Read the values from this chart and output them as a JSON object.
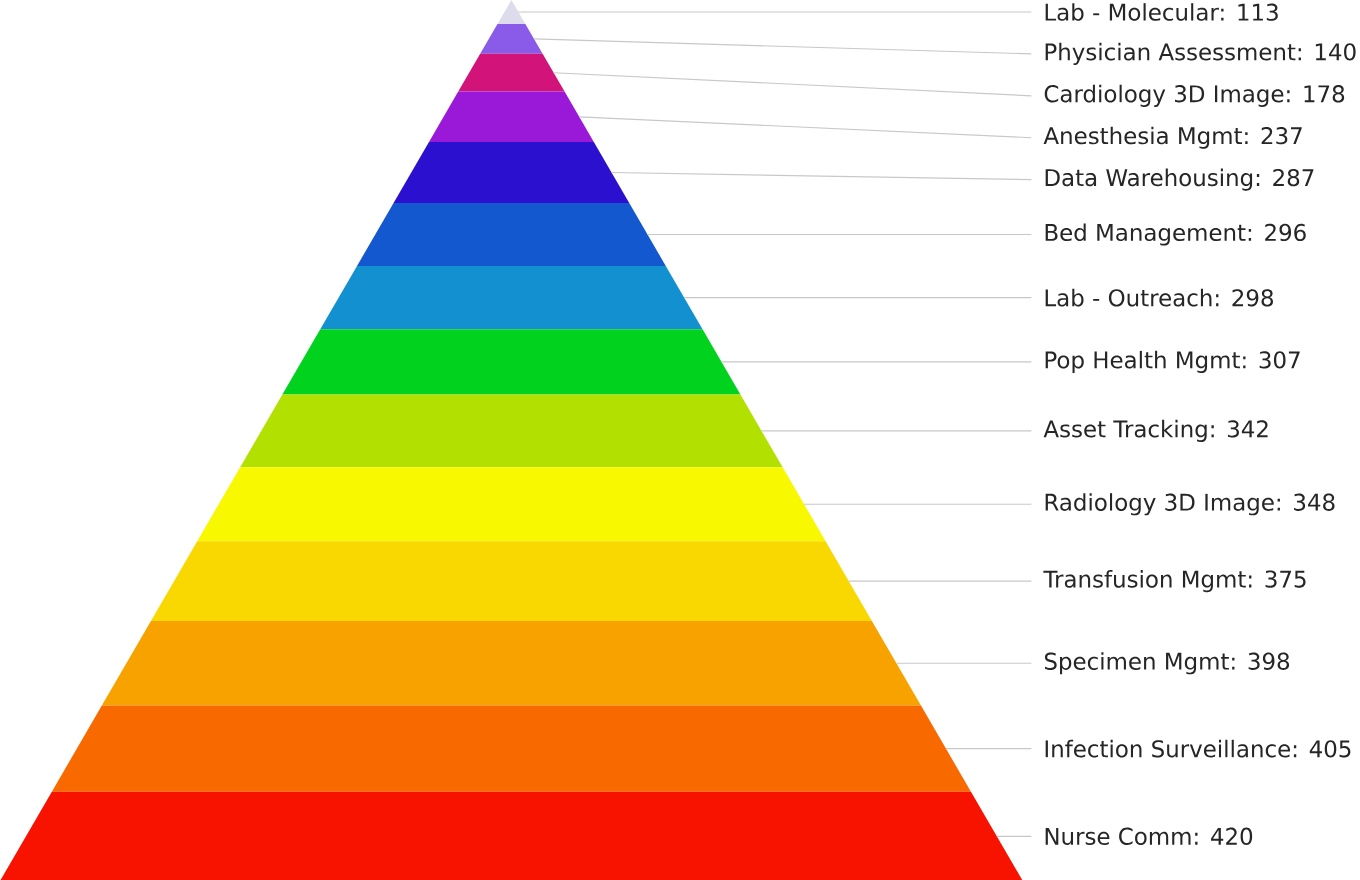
{
  "chart_data": {
    "type": "other",
    "values": [
      113,
      140,
      178,
      237,
      287,
      296,
      298,
      307,
      342,
      348,
      375,
      398,
      405,
      420
    ],
    "value_labels": [
      "Lab - Molecular: 113",
      "Physician Assessment: 140",
      "Cardiology 3D Image: 178",
      "Anesthesia Mgmt: 237",
      "Data Warehousing: 287",
      "Bed Management: 296",
      "Lab - Outreach: 298",
      "Pop Health Mgmt: 307",
      "Asset Tracking: 342",
      "Radiology 3D Image: 348",
      "Transfusion Mgmt: 375",
      "Specimen Mgmt: 398",
      "Infection Surveillance: 405",
      "Nurse Comm: 420"
    ],
    "colors": [
      "#dcdcec",
      "#8a5ae8",
      "#d2147a",
      "#9a18d8",
      "#2c10d0",
      "#1458d0",
      "#1290d0",
      "#00d21e",
      "#b2e000",
      "#f8f800",
      "#f8d800",
      "#f8a200",
      "#f86a00",
      "#f81200"
    ]
  }
}
